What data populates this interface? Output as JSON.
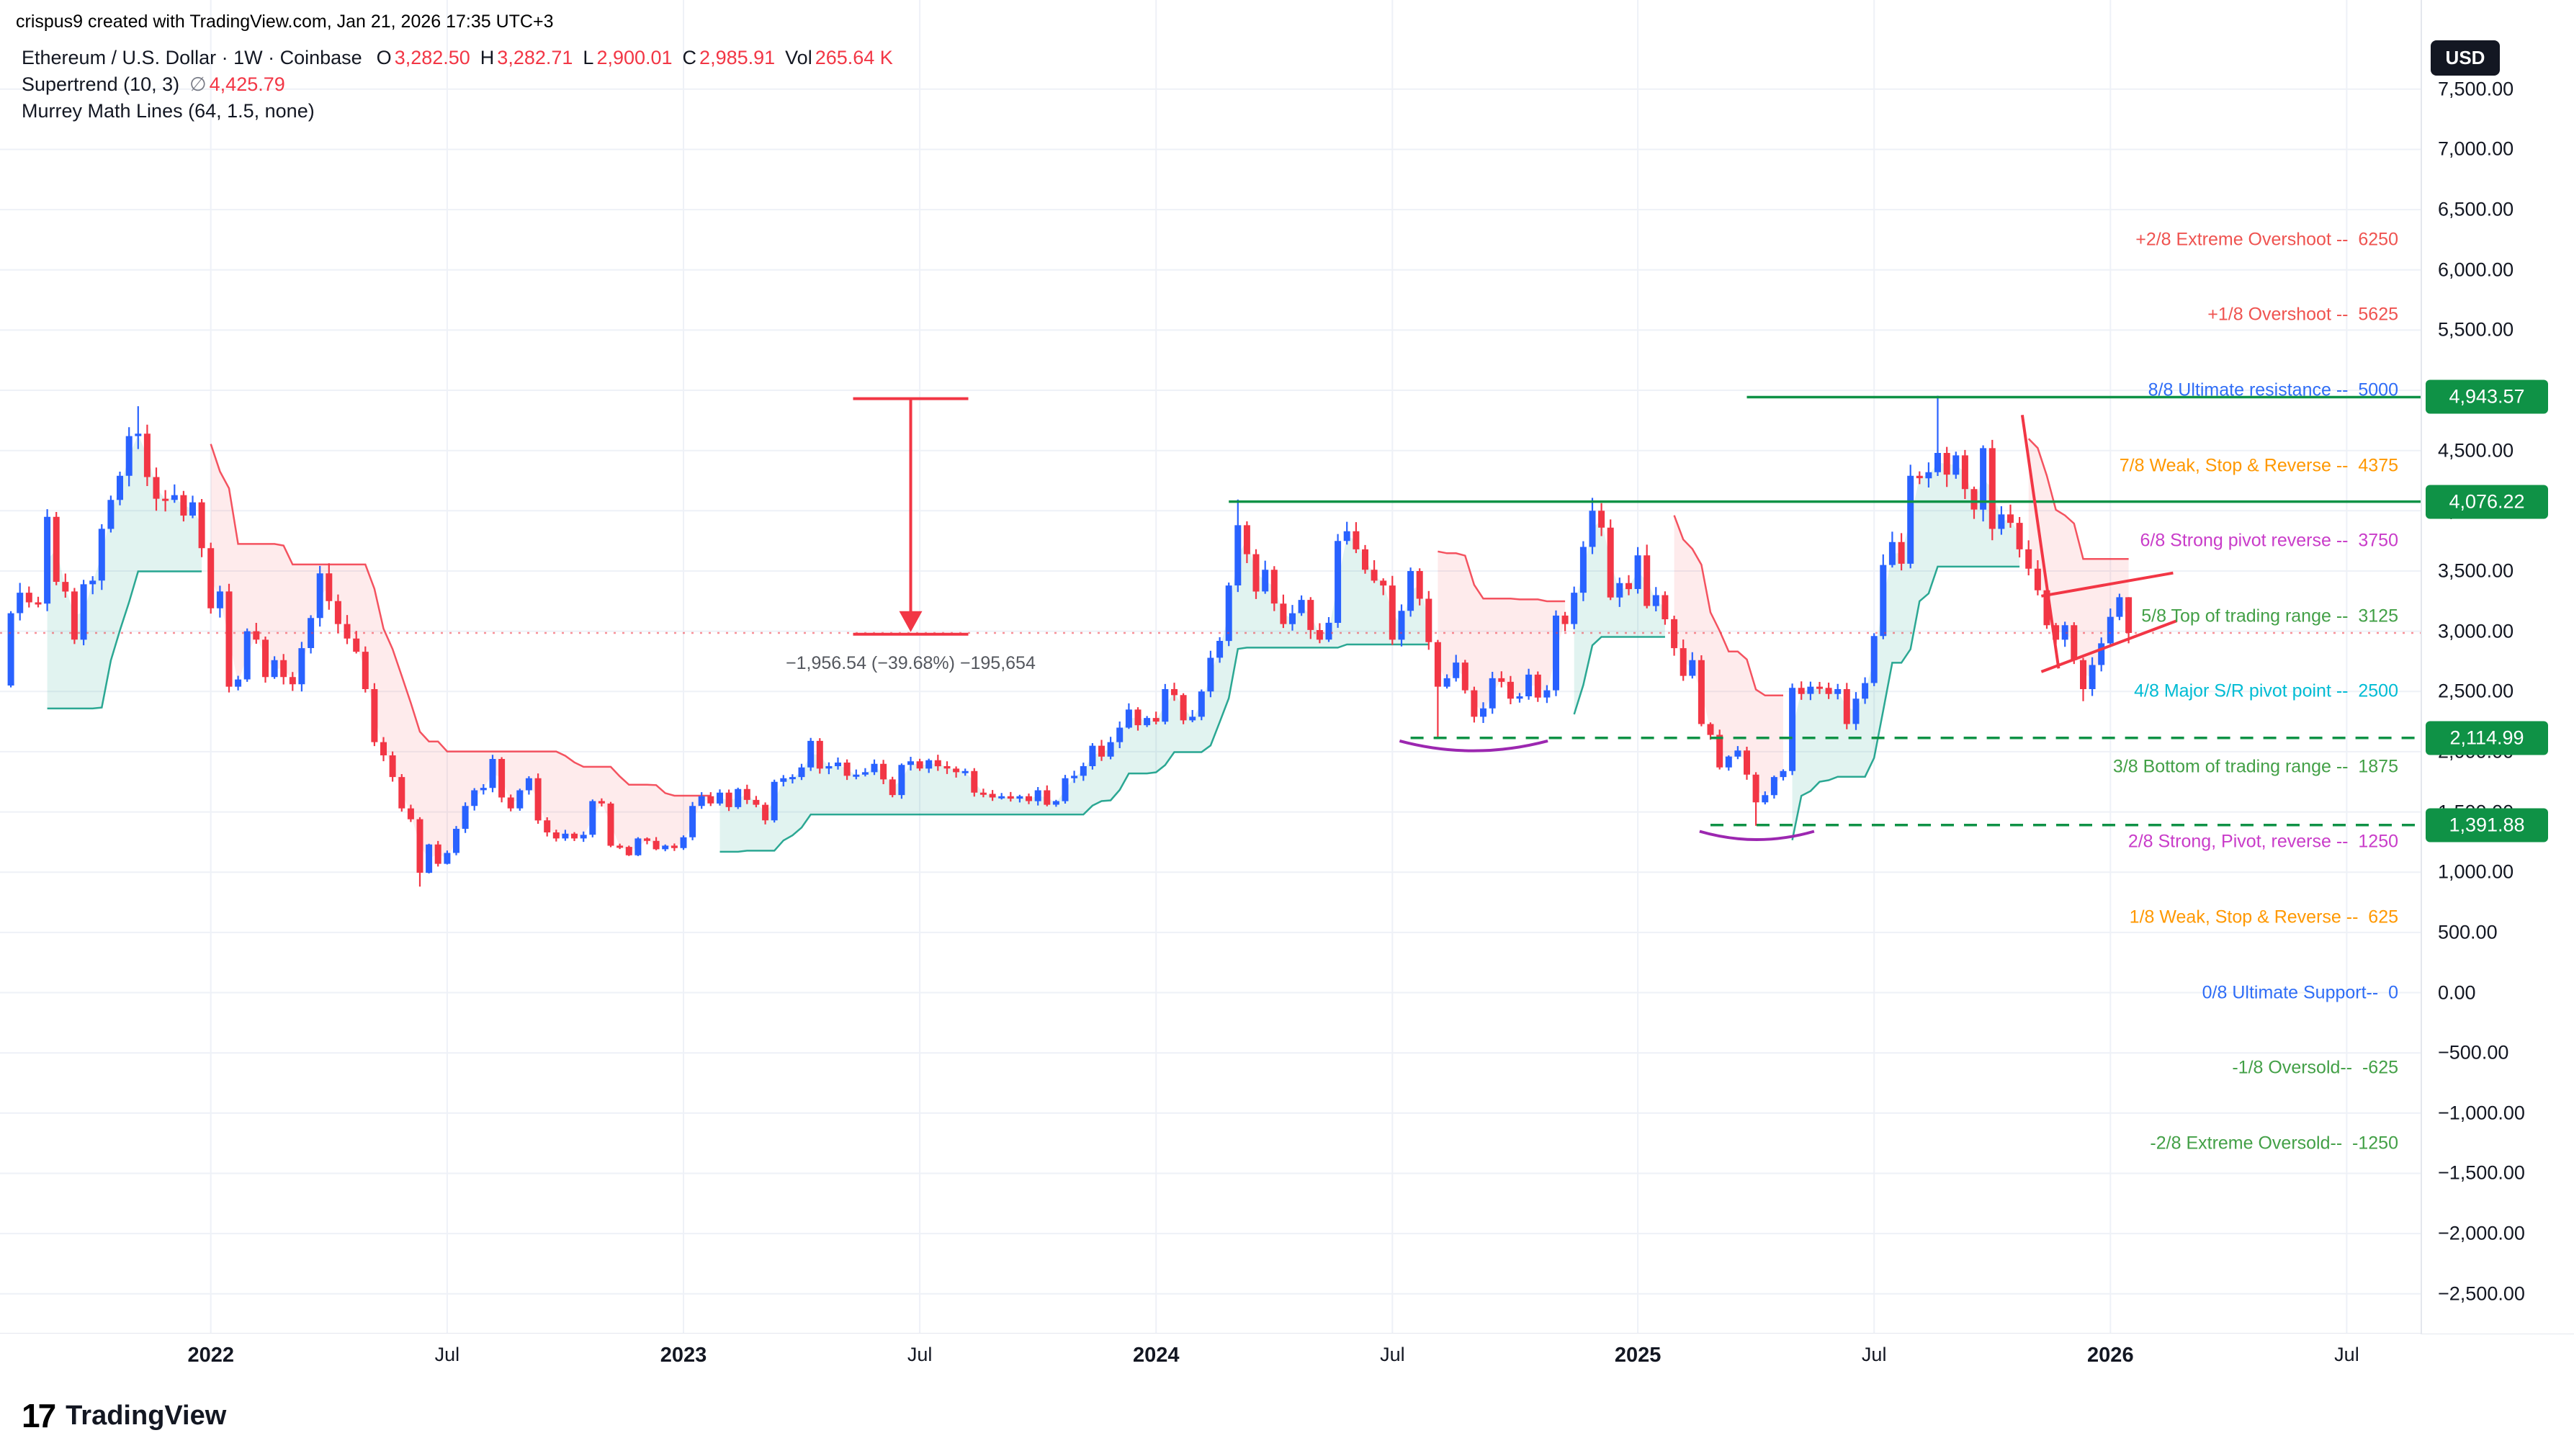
{
  "watermark": "crispus9 created with TradingView.com, Jan 21, 2026 17:35 UTC+3",
  "legend": {
    "title": "Ethereum / U.S. Dollar · 1W · Coinbase",
    "ohlc": [
      {
        "k": "O",
        "v": "3,282.50"
      },
      {
        "k": "H",
        "v": "3,282.71"
      },
      {
        "k": "L",
        "v": "2,900.01"
      },
      {
        "k": "C",
        "v": "2,985.91"
      }
    ],
    "vol_label": "Vol",
    "vol_value": "265.64 K",
    "supertrend_name": "Supertrend (10, 3)",
    "supertrend_symbol": "∅",
    "supertrend_value": "4,425.79",
    "murrey_name": "Murrey Math Lines (64, 1.5, none)"
  },
  "price_scale": {
    "currency": "USD",
    "ticks": [
      [
        7500,
        "7,500.00"
      ],
      [
        7000,
        "7,000.00"
      ],
      [
        6500,
        "6,500.00"
      ],
      [
        6000,
        "6,000.00"
      ],
      [
        5500,
        "5,500.00"
      ],
      [
        5000,
        "5,000.00"
      ],
      [
        4500,
        "4,500.00"
      ],
      [
        4000,
        "4,000.00"
      ],
      [
        3500,
        "3,500.00"
      ],
      [
        3000,
        "3,000.00"
      ],
      [
        2500,
        "2,500.00"
      ],
      [
        2000,
        "2,000.00"
      ],
      [
        1500,
        "1,500.00"
      ],
      [
        1000,
        "1,000.00"
      ],
      [
        500,
        "500.00"
      ],
      [
        0,
        "0.00"
      ],
      [
        -500,
        "−500.00"
      ],
      [
        -1000,
        "−1,000.00"
      ],
      [
        -1500,
        "−1,500.00"
      ],
      [
        -2000,
        "−2,000.00"
      ],
      [
        -2500,
        "−2,500.00"
      ]
    ],
    "badges": [
      {
        "value": 4943.57,
        "label": "4,943.57"
      },
      {
        "value": 4076.22,
        "label": "4,076.22"
      },
      {
        "value": 2114.99,
        "label": "2,114.99"
      },
      {
        "value": 1391.88,
        "label": "1,391.88"
      }
    ]
  },
  "time_axis": {
    "ticks": [
      {
        "i": 22,
        "label": "2022",
        "major": true
      },
      {
        "i": 48,
        "label": "Jul",
        "major": false
      },
      {
        "i": 74,
        "label": "2023",
        "major": true
      },
      {
        "i": 100,
        "label": "Jul",
        "major": false
      },
      {
        "i": 126,
        "label": "2024",
        "major": true
      },
      {
        "i": 152,
        "label": "Jul",
        "major": false
      },
      {
        "i": 179,
        "label": "2025",
        "major": true
      },
      {
        "i": 205,
        "label": "Jul",
        "major": false
      },
      {
        "i": 231,
        "label": "2026",
        "major": true
      },
      {
        "i": 257,
        "label": "Jul",
        "major": false
      }
    ]
  },
  "murrey_labels": [
    {
      "price": 6250,
      "text": "+2/8 Extreme Overshoot --  6250",
      "color": "#ef5350"
    },
    {
      "price": 5625,
      "text": "+1/8 Overshoot --  5625",
      "color": "#ef5350"
    },
    {
      "price": 5000,
      "text": "8/8 Ultimate resistance --  5000",
      "color": "#2f6df6"
    },
    {
      "price": 4375,
      "text": "7/8 Weak, Stop & Reverse --  4375",
      "color": "#ff9800"
    },
    {
      "price": 3750,
      "text": "6/8 Strong pivot reverse --  3750",
      "color": "#c93cc9"
    },
    {
      "price": 3125,
      "text": "5/8 Top of trading range --  3125",
      "color": "#43a047"
    },
    {
      "price": 2500,
      "text": "4/8 Major S/R pivot point --  2500",
      "color": "#00bcd4"
    },
    {
      "price": 1875,
      "text": "3/8 Bottom of trading range --  1875",
      "color": "#43a047"
    },
    {
      "price": 1250,
      "text": "2/8 Strong, Pivot, reverse --  1250",
      "color": "#c93cc9"
    },
    {
      "price": 625,
      "text": "1/8 Weak, Stop & Reverse --  625",
      "color": "#ff9800"
    },
    {
      "price": 0,
      "text": "0/8 Ultimate Support--  0",
      "color": "#2f6df6"
    },
    {
      "price": -625,
      "text": "-1/8 Oversold--  -625",
      "color": "#43a047"
    },
    {
      "price": -1250,
      "text": "-2/8 Extreme Oversold--  -1250",
      "color": "#43a047"
    }
  ],
  "drawings": {
    "hlines": [
      {
        "price": 4943.57,
        "start": 191,
        "style": "solid"
      },
      {
        "price": 4076.22,
        "start": 134,
        "style": "solid"
      },
      {
        "price": 2114.99,
        "start": 154,
        "style": "dashed"
      },
      {
        "price": 1391.88,
        "start": 187,
        "style": "dashed"
      }
    ],
    "measure": {
      "x_index": 99,
      "price_from": 4931,
      "price_to": 2975,
      "text": "−1,956.54 (−39.68%) −195,654"
    },
    "trendlines": [
      [
        221.3,
        4795,
        225.3,
        2691
      ],
      [
        223.4,
        3292,
        237.9,
        3484
      ],
      [
        223.4,
        2664,
        238.3,
        3087
      ]
    ],
    "arcs": [
      [
        152.8,
        2090,
        160.9,
        1926,
        169.1,
        2090
      ],
      [
        185.8,
        1339,
        192.1,
        1202,
        198.4,
        1339
      ]
    ],
    "colors": {
      "hline": "#0f9246",
      "measure": "#f23645",
      "trend": "#f23645",
      "arc": "#9c27b0"
    }
  },
  "footer": {
    "logo_mark": "17",
    "brand": "TradingView"
  },
  "chart_data": {
    "type": "candlestick",
    "title": "Ethereum / U.S. Dollar",
    "timeframe": "1W",
    "exchange": "Coinbase",
    "legend_position": "top-left",
    "grid": true,
    "ylim": [
      -2830,
      8240
    ],
    "first_open": 2550,
    "closes": [
      3150,
      3320,
      3240,
      3230,
      3950,
      3410,
      3330,
      2930,
      3390,
      3420,
      3850,
      4090,
      4290,
      4620,
      4640,
      4280,
      4100,
      4090,
      4130,
      3960,
      4070,
      3690,
      3190,
      3330,
      2540,
      2600,
      3000,
      2930,
      2620,
      2760,
      2620,
      2560,
      2860,
      3110,
      3480,
      3250,
      3060,
      2940,
      2830,
      2520,
      2080,
      1970,
      1790,
      1530,
      1440,
      995,
      1230,
      1070,
      1160,
      1360,
      1550,
      1680,
      1700,
      1940,
      1620,
      1530,
      1680,
      1780,
      1430,
      1330,
      1280,
      1320,
      1280,
      1310,
      1590,
      1570,
      1220,
      1210,
      1140,
      1280,
      1260,
      1190,
      1220,
      1200,
      1290,
      1550,
      1630,
      1570,
      1660,
      1540,
      1690,
      1600,
      1560,
      1430,
      1750,
      1780,
      1790,
      1870,
      2090,
      1860,
      1880,
      1910,
      1800,
      1810,
      1830,
      1900,
      1770,
      1640,
      1890,
      1920,
      1860,
      1930,
      1880,
      1860,
      1830,
      1840,
      1660,
      1650,
      1620,
      1630,
      1610,
      1630,
      1590,
      1680,
      1560,
      1590,
      1780,
      1800,
      1880,
      2050,
      1960,
      2080,
      2200,
      2350,
      2220,
      2280,
      2250,
      2520,
      2470,
      2260,
      2290,
      2500,
      2780,
      2920,
      3380,
      3880,
      3640,
      3330,
      3510,
      3230,
      3060,
      3150,
      3260,
      3010,
      2930,
      3070,
      3750,
      3830,
      3680,
      3510,
      3420,
      3380,
      2930,
      3170,
      3500,
      3270,
      2910,
      2540,
      2610,
      2740,
      2510,
      2290,
      2360,
      2610,
      2580,
      2440,
      2460,
      2640,
      2450,
      2510,
      3130,
      3060,
      3320,
      3700,
      4000,
      3860,
      3280,
      3400,
      3350,
      3630,
      3210,
      3300,
      3100,
      2860,
      2630,
      2760,
      2230,
      2140,
      1870,
      1960,
      2010,
      1810,
      1580,
      1640,
      1790,
      1840,
      2530,
      2480,
      2540,
      2530,
      2480,
      2520,
      2230,
      2440,
      2570,
      2960,
      3550,
      3740,
      3560,
      4290,
      4270,
      4320,
      4480,
      4300,
      4460,
      4180,
      4010,
      4520,
      3850,
      3970,
      3900,
      3680,
      3520,
      3340,
      3050,
      2930,
      3050,
      2760,
      2520,
      2720,
      2900,
      3120,
      3282.5,
      2985.91
    ],
    "extremes": {
      "14": [
        4868,
        null
      ],
      "45": [
        null,
        880
      ],
      "135": [
        4093,
        null
      ],
      "157": [
        null,
        2111
      ],
      "174": [
        4107,
        null
      ],
      "192": [
        null,
        1385
      ],
      "212": [
        4955,
        null
      ],
      "228": [
        null,
        2420
      ]
    },
    "last_candle": [
      3282.5,
      3282.71,
      2900.01,
      2985.91
    ],
    "supertrend_params": [
      10,
      3
    ],
    "murrey_params": [
      64,
      1.5,
      "none"
    ],
    "up_color": "#2962ff",
    "down_color": "#f23645",
    "st_up_color": "#089981",
    "st_down_color": "#f23645",
    "wiggle_seed": 7
  }
}
